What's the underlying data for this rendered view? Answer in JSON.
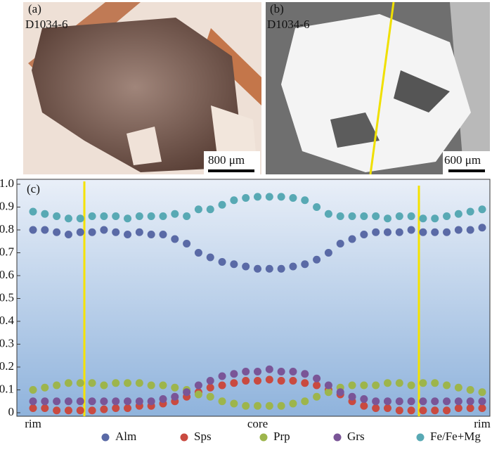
{
  "panels": {
    "a": {
      "label": "(a)",
      "sample": "D1034-6",
      "scale": "800 μm"
    },
    "b": {
      "label": "(b)",
      "sample": "D1034-6",
      "scale": "600 μm"
    },
    "c": {
      "label": "(c)"
    }
  },
  "chart_data": {
    "type": "scatter",
    "categories": [
      "rim",
      null,
      null,
      null,
      null,
      null,
      null,
      null,
      null,
      null,
      null,
      null,
      null,
      null,
      null,
      null,
      null,
      null,
      null,
      "core",
      null,
      null,
      null,
      null,
      null,
      null,
      null,
      null,
      null,
      null,
      null,
      null,
      null,
      null,
      null,
      null,
      null,
      null,
      "rim"
    ],
    "ylim": [
      0,
      1
    ],
    "yticks": [
      0,
      0.1,
      0.2,
      0.3,
      0.4,
      0.5,
      0.6,
      0.7,
      0.8,
      0.9,
      {
        "value": 1,
        "label": "1.0"
      }
    ],
    "series": [
      {
        "name": "Alm",
        "color": "#5a6aa6",
        "values": [
          0.8,
          0.8,
          0.79,
          0.78,
          0.79,
          0.79,
          0.8,
          0.79,
          0.78,
          0.79,
          0.78,
          0.78,
          0.76,
          0.74,
          0.7,
          0.68,
          0.66,
          0.65,
          0.64,
          0.63,
          0.63,
          0.63,
          0.64,
          0.65,
          0.67,
          0.7,
          0.74,
          0.76,
          0.78,
          0.79,
          0.79,
          0.79,
          0.8,
          0.79,
          0.79,
          0.79,
          0.8,
          0.8,
          0.81
        ]
      },
      {
        "name": "Sps",
        "color": "#c94a40",
        "values": [
          0.02,
          0.02,
          0.01,
          0.01,
          0.01,
          0.01,
          0.015,
          0.02,
          0.02,
          0.03,
          0.03,
          0.04,
          0.05,
          0.07,
          0.09,
          0.11,
          0.12,
          0.13,
          0.14,
          0.14,
          0.145,
          0.14,
          0.14,
          0.13,
          0.12,
          0.1,
          0.08,
          0.05,
          0.03,
          0.02,
          0.02,
          0.01,
          0.01,
          0.01,
          0.01,
          0.01,
          0.02,
          0.02,
          0.02
        ]
      },
      {
        "name": "Prp",
        "color": "#9db54c",
        "values": [
          0.1,
          0.11,
          0.12,
          0.13,
          0.13,
          0.13,
          0.12,
          0.13,
          0.13,
          0.13,
          0.12,
          0.12,
          0.11,
          0.1,
          0.08,
          0.07,
          0.05,
          0.04,
          0.03,
          0.03,
          0.03,
          0.03,
          0.04,
          0.05,
          0.07,
          0.09,
          0.11,
          0.12,
          0.12,
          0.12,
          0.13,
          0.13,
          0.12,
          0.13,
          0.13,
          0.12,
          0.11,
          0.1,
          0.09
        ]
      },
      {
        "name": "Grs",
        "color": "#7a5597",
        "values": [
          0.05,
          0.05,
          0.05,
          0.05,
          0.05,
          0.05,
          0.05,
          0.05,
          0.05,
          0.05,
          0.05,
          0.06,
          0.07,
          0.09,
          0.12,
          0.14,
          0.16,
          0.17,
          0.18,
          0.18,
          0.19,
          0.18,
          0.18,
          0.17,
          0.15,
          0.12,
          0.09,
          0.07,
          0.06,
          0.05,
          0.05,
          0.05,
          0.05,
          0.05,
          0.05,
          0.05,
          0.05,
          0.05,
          0.05
        ]
      },
      {
        "name": "Fe/Fe+Mg",
        "color": "#58a9b4",
        "values": [
          0.88,
          0.87,
          0.86,
          0.85,
          0.85,
          0.86,
          0.86,
          0.86,
          0.85,
          0.86,
          0.86,
          0.86,
          0.87,
          0.86,
          0.89,
          0.89,
          0.91,
          0.93,
          0.94,
          0.945,
          0.945,
          0.945,
          0.94,
          0.93,
          0.9,
          0.87,
          0.86,
          0.86,
          0.86,
          0.86,
          0.85,
          0.86,
          0.86,
          0.85,
          0.85,
          0.86,
          0.87,
          0.88,
          0.89
        ]
      }
    ]
  }
}
